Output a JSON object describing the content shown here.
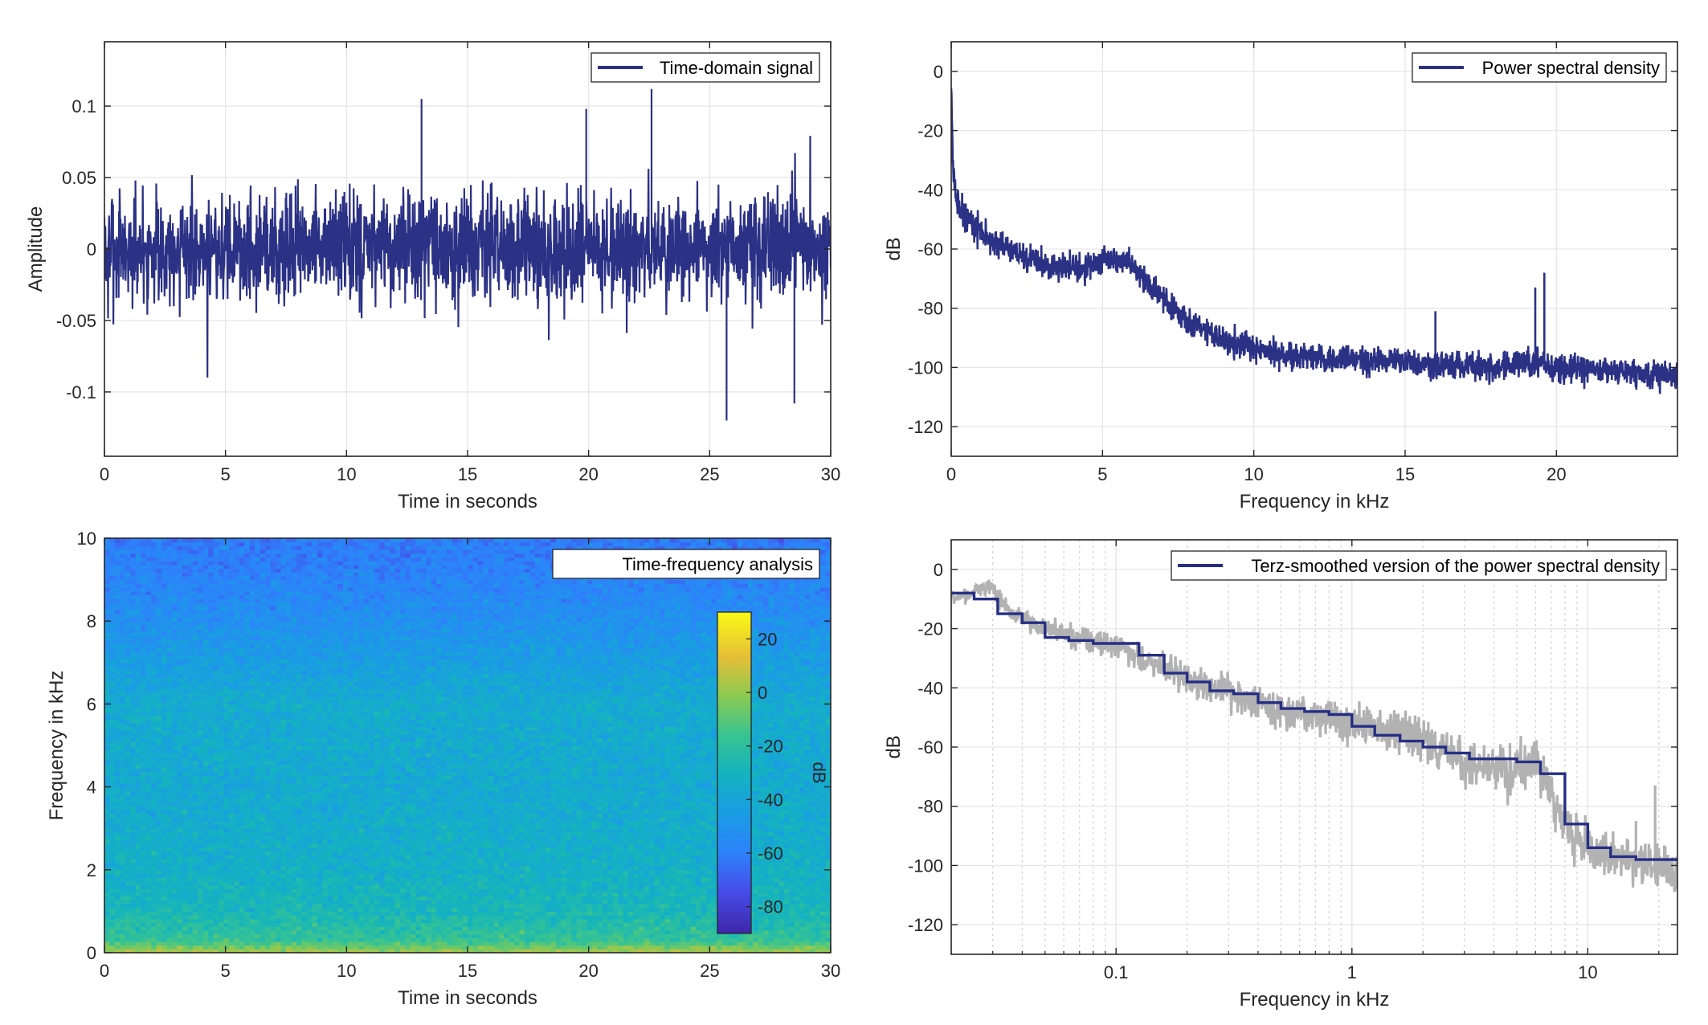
{
  "colors": {
    "signal": "#2b3185",
    "smoothed_line": "#262e84",
    "raw_gray": "#b2b2b2",
    "grid": "#e6e6e6",
    "axis": "#262626"
  },
  "chart_data": [
    {
      "type": "line",
      "legend": [
        "Time-domain signal"
      ],
      "legend_position": "top-right",
      "xlabel": "Time in seconds",
      "ylabel": "Amplitude",
      "xlim": [
        0,
        30
      ],
      "ylim": [
        -0.145,
        0.145
      ],
      "xticks": [
        0,
        5,
        10,
        15,
        20,
        25,
        30
      ],
      "xtick_labels": [
        "0",
        "5",
        "10",
        "15",
        "20",
        "25",
        "30"
      ],
      "yticks": [
        -0.1,
        -0.05,
        0,
        0.05,
        0.1
      ],
      "ytick_labels": [
        "-0.1",
        "-0.05",
        "0",
        "0.05",
        "0.1"
      ],
      "grid": true,
      "series": [
        {
          "name": "Time-domain signal",
          "envelope_typical": 0.045,
          "peak_values": [
            0.112,
            -0.12,
            0.105,
            -0.108,
            0.098
          ]
        }
      ]
    },
    {
      "type": "line",
      "legend": [
        "Power spectral density"
      ],
      "legend_position": "top-right",
      "xlabel": "Frequency in kHz",
      "ylabel": "dB",
      "xlim": [
        0,
        24
      ],
      "ylim": [
        -130,
        10
      ],
      "xticks": [
        0,
        5,
        10,
        15,
        20
      ],
      "xtick_labels": [
        "0",
        "5",
        "10",
        "15",
        "20"
      ],
      "yticks": [
        0,
        -20,
        -40,
        -60,
        -80,
        -100,
        -120
      ],
      "ytick_labels": [
        "0",
        "-20",
        "-40",
        "-60",
        "-80",
        "-100",
        "-120"
      ],
      "grid": true,
      "series": [
        {
          "name": "Power spectral density",
          "x": [
            0,
            0.05,
            0.15,
            0.4,
            0.8,
            1.5,
            2.5,
            3.5,
            4.5,
            5.2,
            5.8,
            6.5,
            7.5,
            8.5,
            10,
            12,
            15,
            16,
            18,
            19.5,
            20,
            22,
            24
          ],
          "y": [
            -2,
            -30,
            -42,
            -48,
            -53,
            -58,
            -63,
            -67,
            -66,
            -63,
            -64,
            -72,
            -82,
            -89,
            -94,
            -97,
            -98,
            -99,
            -100,
            -98,
            -100,
            -101,
            -103
          ],
          "spikes": [
            [
              16,
              -81
            ],
            [
              19.3,
              -73
            ],
            [
              19.6,
              -68
            ]
          ]
        }
      ]
    },
    {
      "type": "heatmap",
      "legend": [
        "Time-frequency analysis"
      ],
      "legend_position": "top-right",
      "xlabel": "Time in seconds",
      "ylabel": "Frequency in kHz",
      "xlim": [
        0,
        30
      ],
      "ylim": [
        0,
        10
      ],
      "xticks": [
        0,
        5,
        10,
        15,
        20,
        25,
        30
      ],
      "xtick_labels": [
        "0",
        "5",
        "10",
        "15",
        "20",
        "25",
        "30"
      ],
      "yticks": [
        0,
        2,
        4,
        6,
        8,
        10
      ],
      "ytick_labels": [
        "0",
        "2",
        "4",
        "6",
        "8",
        "10"
      ],
      "colorbar": {
        "label": "dB",
        "ticks": [
          20,
          0,
          -20,
          -40,
          -60,
          -80
        ],
        "tick_labels": [
          "20",
          "0",
          "-20",
          "-40",
          "-60",
          "-80"
        ],
        "range": [
          -90,
          30
        ],
        "colormap": "parula"
      },
      "level_by_frequency_khz": [
        [
          0,
          5
        ],
        [
          0.3,
          -18
        ],
        [
          1,
          -28
        ],
        [
          2,
          -33
        ],
        [
          4,
          -37
        ],
        [
          6,
          -36
        ],
        [
          7,
          -44
        ],
        [
          8,
          -52
        ],
        [
          9,
          -58
        ],
        [
          10,
          -62
        ]
      ]
    },
    {
      "type": "line",
      "legend": [
        "Terz-smoothed version of the power spectral density"
      ],
      "legend_position": "top-right",
      "xlabel": "Frequency in kHz",
      "ylabel": "dB",
      "xscale": "log",
      "xlim": [
        0.02,
        24
      ],
      "ylim": [
        -130,
        10
      ],
      "xticks": [
        0.1,
        1,
        10
      ],
      "xtick_labels": [
        "0.1",
        "1",
        "10"
      ],
      "yticks": [
        0,
        -20,
        -40,
        -60,
        -80,
        -100,
        -120
      ],
      "ytick_labels": [
        "0",
        "-20",
        "-40",
        "-60",
        "-80",
        "-100",
        "-120"
      ],
      "grid": true,
      "series": [
        {
          "name": "Terz-smoothed version of the power spectral density",
          "steps": [
            [
              0.02,
              -8
            ],
            [
              0.025,
              -10
            ],
            [
              0.0315,
              -15
            ],
            [
              0.04,
              -18
            ],
            [
              0.05,
              -23
            ],
            [
              0.063,
              -24
            ],
            [
              0.08,
              -25
            ],
            [
              0.1,
              -25
            ],
            [
              0.125,
              -29
            ],
            [
              0.16,
              -35
            ],
            [
              0.2,
              -38
            ],
            [
              0.25,
              -41
            ],
            [
              0.315,
              -42
            ],
            [
              0.4,
              -45
            ],
            [
              0.5,
              -47
            ],
            [
              0.63,
              -48
            ],
            [
              0.8,
              -49
            ],
            [
              1,
              -53
            ],
            [
              1.25,
              -56
            ],
            [
              1.6,
              -58
            ],
            [
              2,
              -60
            ],
            [
              2.5,
              -62
            ],
            [
              3.15,
              -64
            ],
            [
              4,
              -64
            ],
            [
              5,
              -65
            ],
            [
              6.3,
              -69
            ],
            [
              8,
              -86
            ],
            [
              10,
              -94
            ],
            [
              12.5,
              -97
            ],
            [
              16,
              -98
            ],
            [
              20,
              -98
            ],
            [
              24,
              -98
            ]
          ]
        },
        {
          "unlabeled_gray_trace": [
            [
              0.02,
              -10
            ],
            [
              0.03,
              -6
            ],
            [
              0.035,
              -14
            ],
            [
              0.05,
              -20
            ],
            [
              0.1,
              -26
            ],
            [
              0.2,
              -37
            ],
            [
              0.5,
              -47
            ],
            [
              1,
              -52
            ],
            [
              2,
              -57
            ],
            [
              3,
              -65
            ],
            [
              4.5,
              -68
            ],
            [
              6,
              -65
            ],
            [
              6.8,
              -73
            ],
            [
              7.5,
              -82
            ],
            [
              9,
              -92
            ],
            [
              12,
              -96
            ],
            [
              16,
              -99
            ],
            [
              24,
              -102
            ]
          ],
          "spikes": [
            [
              16,
              -85
            ],
            [
              19.3,
              -73
            ]
          ]
        }
      ]
    }
  ]
}
